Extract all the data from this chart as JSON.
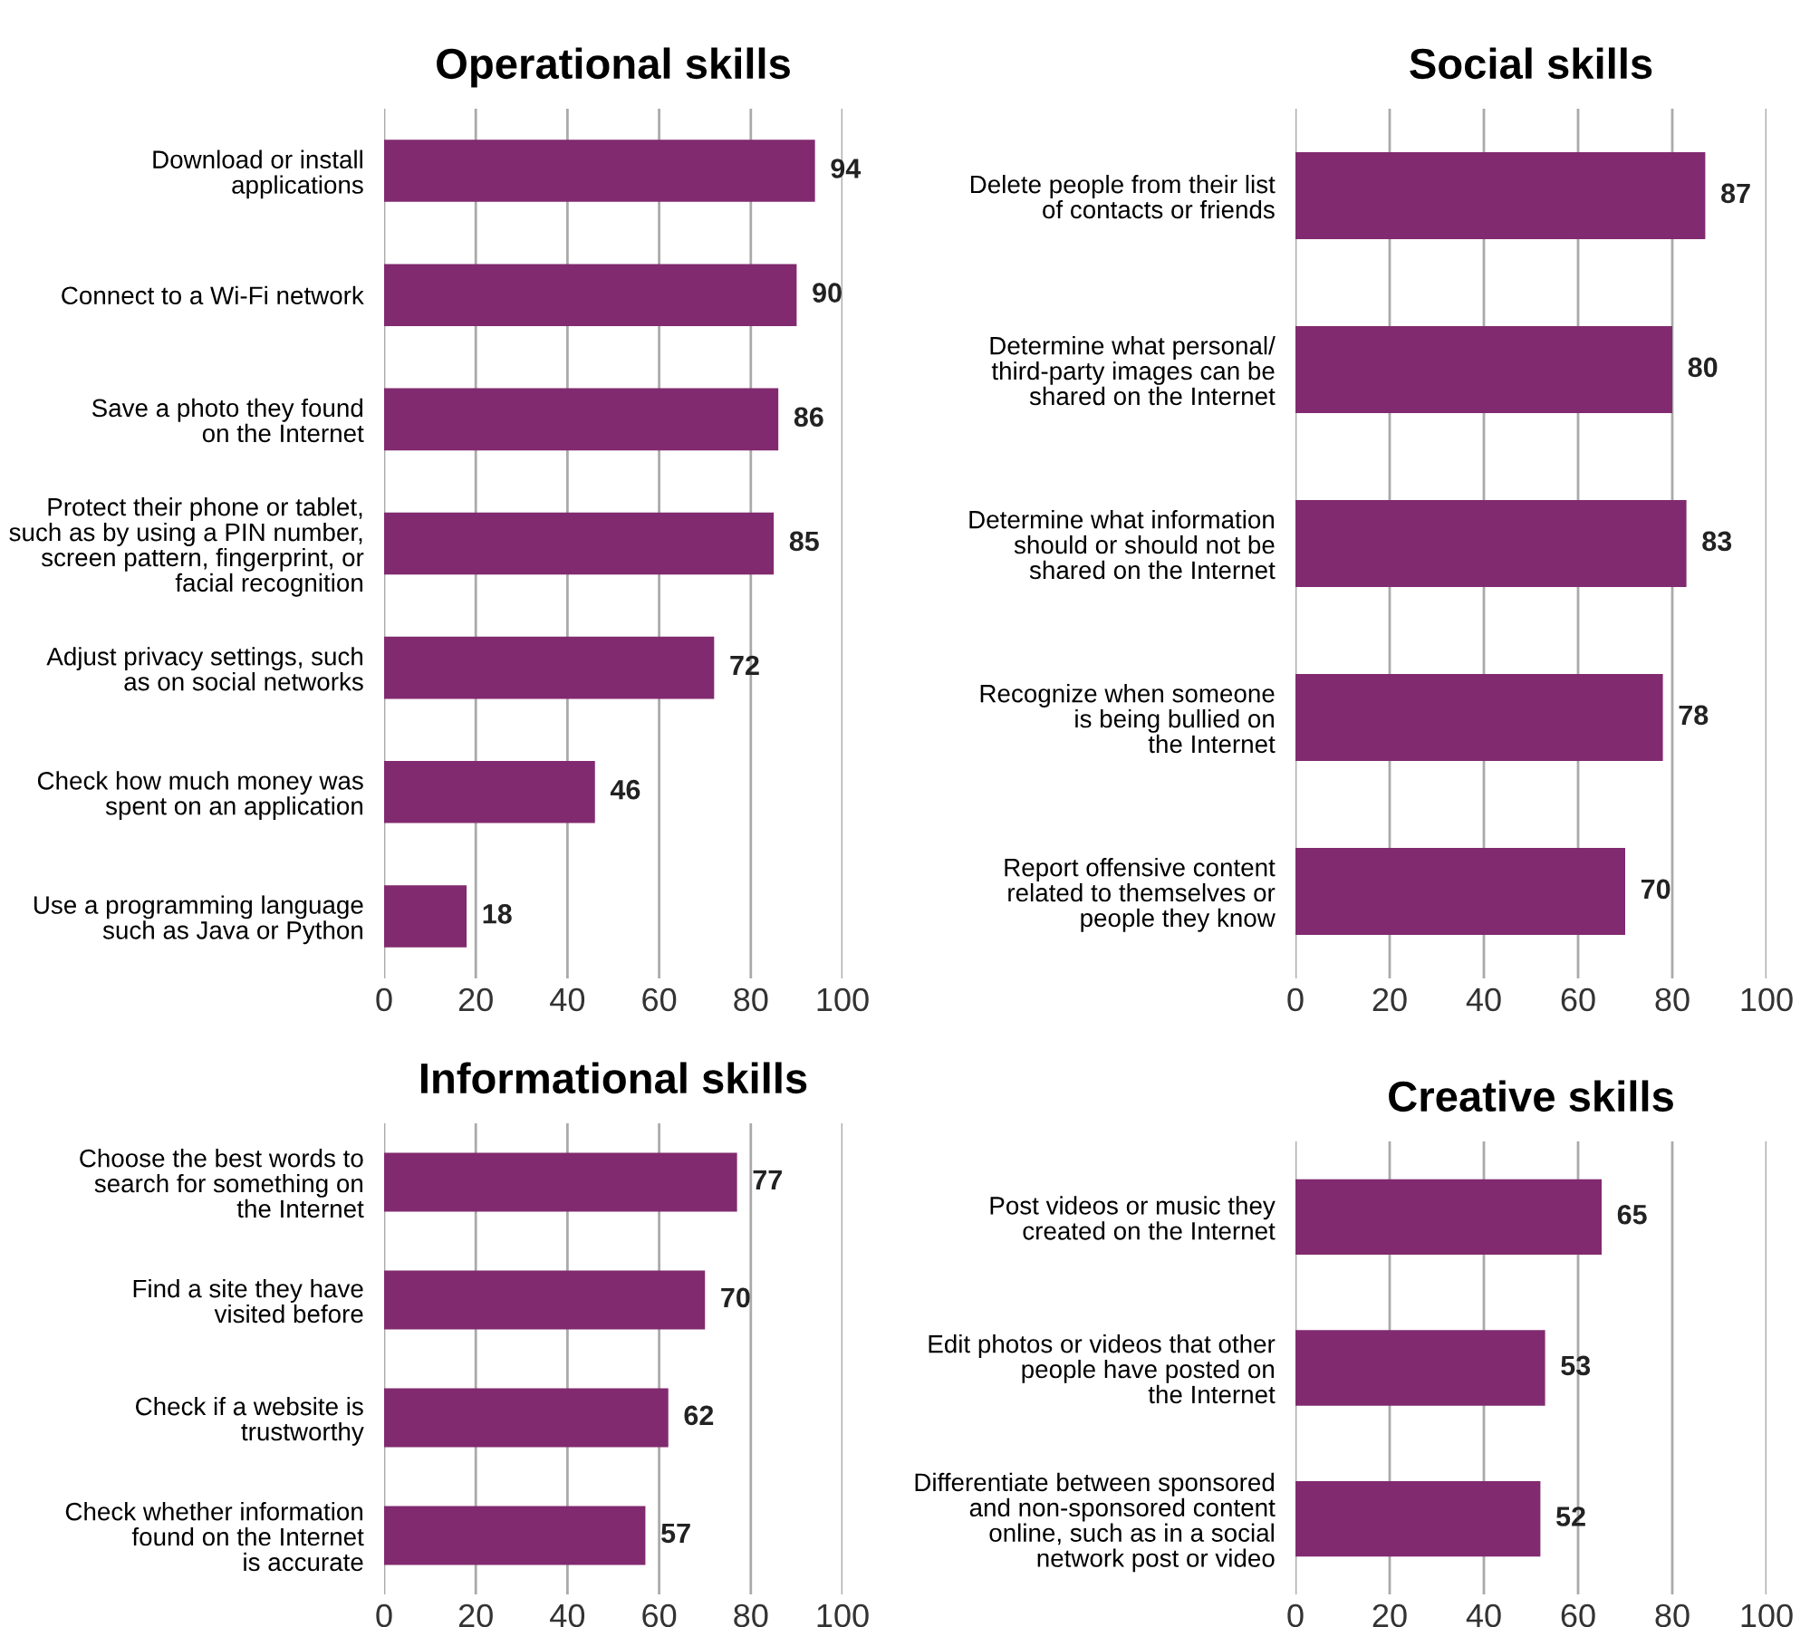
{
  "chart_data": [
    {
      "type": "bar",
      "orientation": "horizontal",
      "title": "Operational skills",
      "categories": [
        "Download or install\napplications",
        "Connect to a Wi-Fi network",
        "Save a photo they found\non the Internet",
        "Protect their phone or tablet,\nsuch as by using a PIN number,\nscreen pattern, fingerprint, or\nfacial recognition",
        "Adjust privacy settings, such\nas on social networks",
        "Check how much money was\nspent on an application",
        "Use a programming language\nsuch as Java or Python"
      ],
      "values": [
        94,
        90,
        86,
        85,
        72,
        46,
        18
      ],
      "color": "#812a6f",
      "data_labels": true,
      "xlim": [
        0,
        100
      ],
      "xticks": [
        0,
        20,
        40,
        60,
        80,
        100
      ],
      "grid": "x"
    },
    {
      "type": "bar",
      "orientation": "horizontal",
      "title": "Social skills",
      "categories": [
        "Delete people from their list\nof contacts or friends",
        "Determine what personal/\nthird-party images can be\nshared on the Internet",
        "Determine what information\nshould or should not be\nshared on the Internet",
        "Recognize when someone\nis being bullied on\nthe Internet",
        "Report offensive content\nrelated to themselves or\npeople they know"
      ],
      "values": [
        87,
        80,
        83,
        78,
        70
      ],
      "color": "#812a6f",
      "data_labels": true,
      "xlim": [
        0,
        100
      ],
      "xticks": [
        0,
        20,
        40,
        60,
        80,
        100
      ],
      "grid": "x"
    },
    {
      "type": "bar",
      "orientation": "horizontal",
      "title": "Informational skills",
      "categories": [
        "Choose the best words to\nsearch for something on\nthe Internet",
        "Find a site they have\nvisited before",
        "Check if a website is\ntrustworthy",
        "Check whether information\nfound on the Internet\nis accurate"
      ],
      "values": [
        77,
        70,
        62,
        57
      ],
      "color": "#812a6f",
      "data_labels": true,
      "xlim": [
        0,
        100
      ],
      "xticks": [
        0,
        20,
        40,
        60,
        80,
        100
      ],
      "grid": "x"
    },
    {
      "type": "bar",
      "orientation": "horizontal",
      "title": "Creative skills",
      "categories": [
        "Post videos or music they\ncreated on the Internet",
        "Edit photos or videos that other\npeople have posted on\nthe Internet",
        "Differentiate between sponsored\nand non-sponsored content\nonline, such as in a social\nnetwork post or video"
      ],
      "values": [
        65,
        53,
        52
      ],
      "color": "#812a6f",
      "data_labels": true,
      "xlim": [
        0,
        100
      ],
      "xticks": [
        0,
        20,
        40,
        60,
        80,
        100
      ],
      "grid": "x"
    }
  ]
}
